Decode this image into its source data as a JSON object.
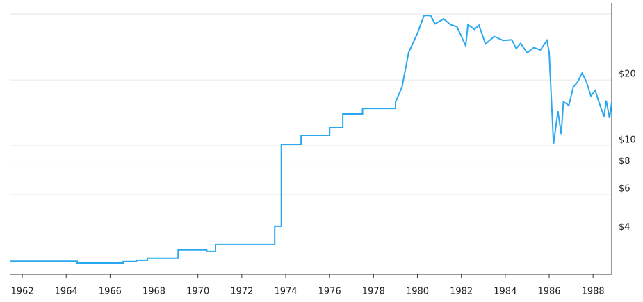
{
  "chart_data": {
    "type": "line",
    "x": [
      1961.46,
      1964.5,
      1964.5,
      1966.6,
      1966.6,
      1967.2,
      1967.2,
      1967.7,
      1967.7,
      1969.1,
      1969.1,
      1970.4,
      1970.4,
      1970.8,
      1970.8,
      1973.5,
      1973.5,
      1973.8,
      1973.8,
      1974.7,
      1974.7,
      1976.0,
      1976.0,
      1976.6,
      1976.6,
      1977.5,
      1977.5,
      1979.0,
      1979.0,
      1979.3,
      1979.6,
      1980.0,
      1980.3,
      1980.6,
      1980.8,
      1981.2,
      1981.5,
      1981.8,
      1982.2,
      1982.3,
      1982.6,
      1982.8,
      1983.1,
      1983.5,
      1983.9,
      1984.3,
      1984.5,
      1984.7,
      1985.0,
      1985.3,
      1985.6,
      1985.9,
      1986.0,
      1986.2,
      1986.4,
      1986.55,
      1986.65,
      1986.9,
      1987.1,
      1987.3,
      1987.5,
      1987.7,
      1987.9,
      1988.1,
      1988.3,
      1988.5,
      1988.6,
      1988.75,
      1988.85
    ],
    "series": [
      {
        "color": "#29a8f0",
        "values": [
          2.97,
          2.97,
          2.91,
          2.91,
          2.96,
          2.96,
          3.0,
          3.0,
          3.07,
          3.07,
          3.35,
          3.35,
          3.3,
          3.3,
          3.55,
          3.55,
          4.29,
          4.29,
          10.15,
          10.15,
          11.16,
          11.16,
          12.09,
          12.09,
          13.99,
          13.99,
          14.83,
          14.83,
          15.8,
          18.6,
          26.7,
          32.6,
          39.4,
          39.4,
          36.1,
          38.0,
          35.8,
          35.0,
          28.6,
          35.8,
          34.0,
          35.6,
          29.2,
          31.6,
          30.3,
          30.5,
          27.8,
          29.4,
          26.6,
          28.1,
          27.4,
          30.3,
          26.8,
          10.2,
          14.4,
          11.3,
          15.9,
          15.3,
          18.6,
          19.6,
          21.5,
          19.6,
          16.9,
          17.9,
          15.5,
          13.6,
          16.1,
          13.4,
          15.8
        ]
      }
    ],
    "xlim": [
      1961.46,
      1988.85
    ],
    "xticks": [
      1962,
      1964,
      1966,
      1968,
      1970,
      1972,
      1974,
      1976,
      1978,
      1980,
      1982,
      1984,
      1986,
      1988
    ],
    "ylim": [
      2.59,
      44.7
    ],
    "log_y": true,
    "yticks": [
      {
        "value": 4,
        "label": "$4"
      },
      {
        "value": 6,
        "label": "$6"
      },
      {
        "value": 8,
        "label": "$8"
      },
      {
        "value": 10,
        "label": "$10"
      },
      {
        "value": 20,
        "label": "$20"
      }
    ],
    "grid": true
  }
}
